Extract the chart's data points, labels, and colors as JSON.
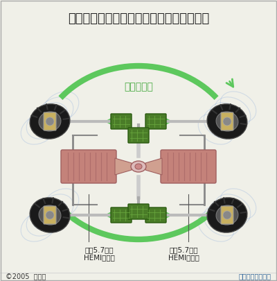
{
  "title": "吉普飓风车的转向系统：零转向和滑移转向",
  "bg_color": "#f0f0e8",
  "title_color": "#222222",
  "title_fontsize": 13,
  "zero_turn_label": "零转弯半径",
  "zero_turn_color": "#4aaa44",
  "front_engine_label": "前置5.7升的\nHEMI发动机",
  "rear_engine_label": "后置5.7升的\nHEMI发动机",
  "label_color": "#222222",
  "copyright_text": "©2005  博闻网",
  "copyright_color": "#333333",
  "note_text": "本图非按比例绘制",
  "note_color": "#336699",
  "arrow_color": "#5dc85d",
  "arrow_color_light": "#a8d8a0",
  "red_arrow_color": "#ee2222",
  "wheel_color": "#1a1a1a",
  "wheel_tread_color": "#333333",
  "engine_body_color": "#c4827a",
  "engine_dark_color": "#a06060",
  "shaft_color": "#d0a090",
  "gear_color": "#4a7c28",
  "gear_light_color": "#6aaa40",
  "axle_color": "#bbbbbb",
  "frame_color": "#888888",
  "driveshaft_color": "#cccccc",
  "mount_color": "#c8b060",
  "center_box_color": "#eeeeee",
  "tire_trail_color": "#aaccff",
  "tire_trail_alpha": 0.25
}
